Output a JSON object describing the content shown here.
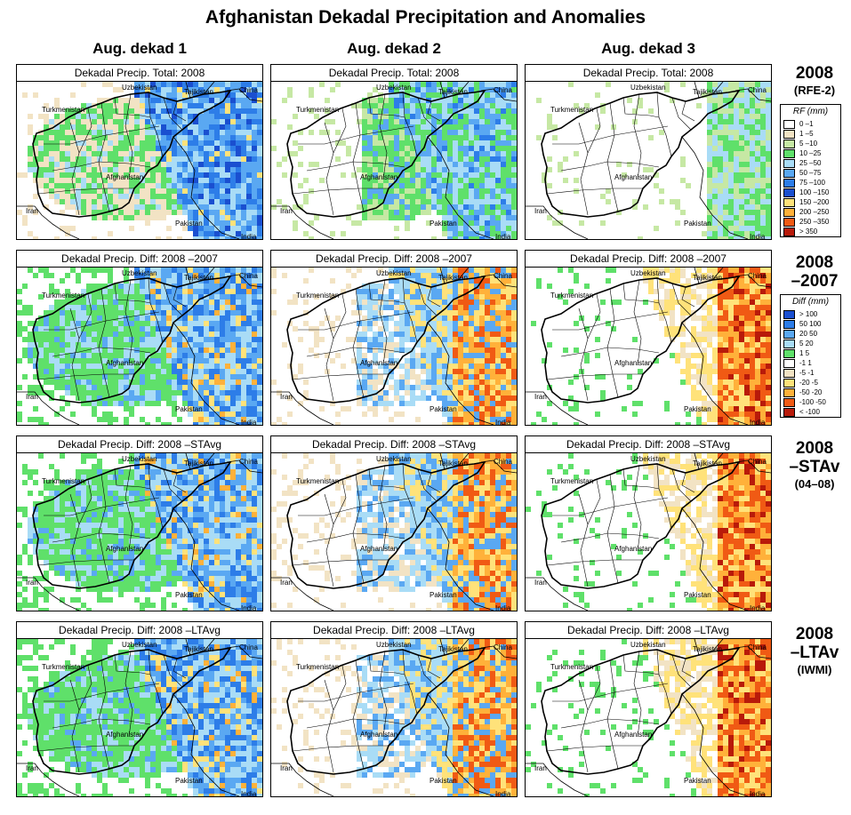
{
  "title": "Afghanistan Dekadal Precipitation and Anomalies",
  "columns": [
    "Aug. dekad 1",
    "Aug. dekad 2",
    "Aug. dekad 3"
  ],
  "rows": [
    {
      "label_lines": [
        "2008",
        "(RFE-2)"
      ],
      "panel_title": "Dekadal Precip. Total: 2008",
      "type": "total"
    },
    {
      "label_lines": [
        "2008",
        "–2007"
      ],
      "panel_title": "Dekadal Precip. Diff: 2008 –2007",
      "type": "diff"
    },
    {
      "label_lines": [
        "2008",
        "–STAv",
        "(04–08)"
      ],
      "panel_title": "Dekadal Precip. Diff: 2008 –STAvg",
      "type": "diff"
    },
    {
      "label_lines": [
        "2008",
        "–LTAv",
        "(IWMI)"
      ],
      "panel_title": "Dekadal Precip. Diff: 2008 –LTAvg",
      "type": "diff"
    }
  ],
  "map_labels": [
    "Uzbekistan",
    "Tajikistan",
    "China",
    "Turkmenistan",
    "Afghanistan",
    "Iran",
    "Pakistan",
    "India"
  ],
  "legend_rf": {
    "title": "RF (mm)",
    "items": [
      {
        "label": "0 –1",
        "color": "#ffffff"
      },
      {
        "label": "1 –5",
        "color": "#f2e3c4"
      },
      {
        "label": "5 –10",
        "color": "#c6e8a4"
      },
      {
        "label": "10 –25",
        "color": "#5fe06a"
      },
      {
        "label": "25 –50",
        "color": "#a9dcf6"
      },
      {
        "label": "50 –75",
        "color": "#5aa8f2"
      },
      {
        "label": "75 –100",
        "color": "#2d7de8"
      },
      {
        "label": "100 –150",
        "color": "#1a4fd0"
      },
      {
        "label": "150 –200",
        "color": "#ffe27a"
      },
      {
        "label": "200 –250",
        "color": "#ffb13a"
      },
      {
        "label": "250 –350",
        "color": "#f05a14"
      },
      {
        "label": "> 350",
        "color": "#b81a0a"
      }
    ]
  },
  "legend_diff": {
    "title": "Diff (mm)",
    "items": [
      {
        "label": "> 100",
        "color": "#1a4fd0"
      },
      {
        "label": "50  100",
        "color": "#2d7de8"
      },
      {
        "label": "20  50",
        "color": "#5aa8f2"
      },
      {
        "label": "5  20",
        "color": "#a9dcf6"
      },
      {
        "label": "1  5",
        "color": "#5fe06a"
      },
      {
        "label": "-1  1",
        "color": "#ffffff"
      },
      {
        "label": "-5  -1",
        "color": "#f2e3c4"
      },
      {
        "label": "-20  -5",
        "color": "#ffe27a"
      },
      {
        "label": "-50  -20",
        "color": "#ffb13a"
      },
      {
        "label": "-100  -50",
        "color": "#f05a14"
      },
      {
        "label": "< -100",
        "color": "#b81a0a"
      }
    ]
  }
}
